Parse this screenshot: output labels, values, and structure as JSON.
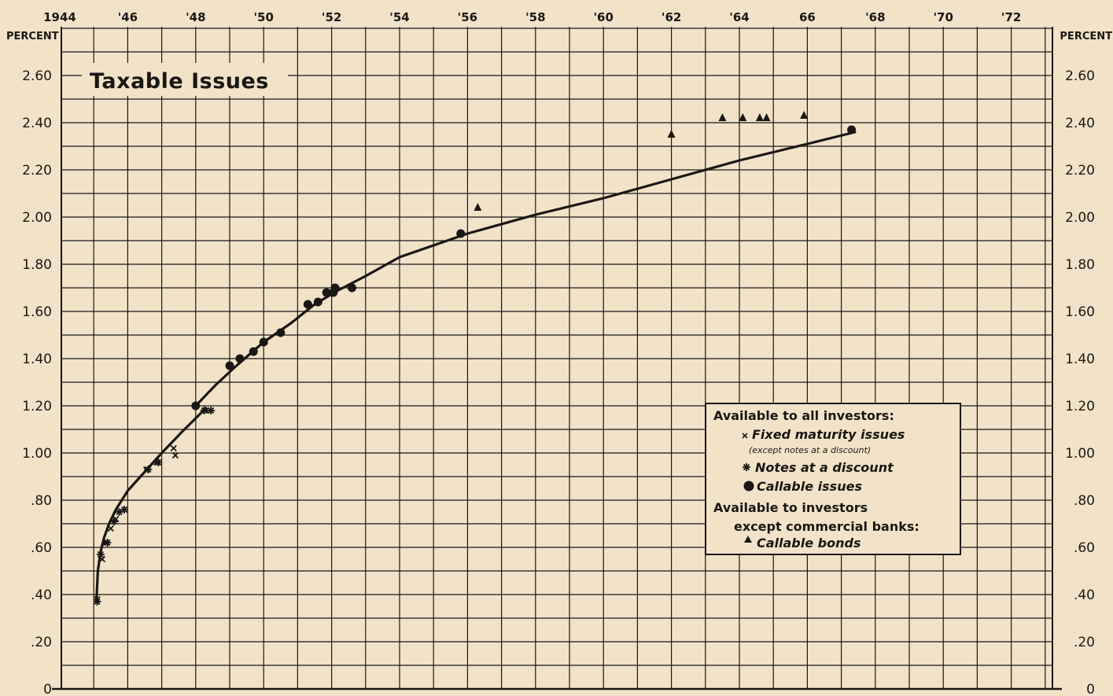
{
  "chart_data": {
    "type": "scatter",
    "title": "Taxable Issues",
    "ylabel_left": "PERCENT",
    "ylabel_right": "PERCENT",
    "xlim": [
      1944,
      1973
    ],
    "ylim": [
      0,
      2.7
    ],
    "grid": true,
    "x_ticks": [
      {
        "value": 1944,
        "label": "1944"
      },
      {
        "value": 1946,
        "label": "'46"
      },
      {
        "value": 1948,
        "label": "'48"
      },
      {
        "value": 1950,
        "label": "'50"
      },
      {
        "value": 1952,
        "label": "'52"
      },
      {
        "value": 1954,
        "label": "'54"
      },
      {
        "value": 1956,
        "label": "'56"
      },
      {
        "value": 1958,
        "label": "'58"
      },
      {
        "value": 1960,
        "label": "'60"
      },
      {
        "value": 1962,
        "label": "'62"
      },
      {
        "value": 1964,
        "label": "'64"
      },
      {
        "value": 1966,
        "label": "66"
      },
      {
        "value": 1968,
        "label": "'68"
      },
      {
        "value": 1970,
        "label": "'70"
      },
      {
        "value": 1972,
        "label": "'72"
      }
    ],
    "y_ticks_left": [
      {
        "value": 0,
        "label": "0"
      },
      {
        "value": 0.2,
        "label": ".20"
      },
      {
        "value": 0.4,
        "label": ".40"
      },
      {
        "value": 0.6,
        "label": ".60"
      },
      {
        "value": 0.8,
        "label": ".80"
      },
      {
        "value": 1.0,
        "label": "1.00"
      },
      {
        "value": 1.2,
        "label": "1.20"
      },
      {
        "value": 1.4,
        "label": "1.40"
      },
      {
        "value": 1.6,
        "label": "1.60"
      },
      {
        "value": 1.8,
        "label": "1.80"
      },
      {
        "value": 2.0,
        "label": "2.00"
      },
      {
        "value": 2.2,
        "label": "2.20"
      },
      {
        "value": 2.4,
        "label": "2.40"
      },
      {
        "value": 2.6,
        "label": "2.60"
      }
    ],
    "y_ticks_right": [
      {
        "value": 0,
        "label": "0"
      },
      {
        "value": 0.2,
        "label": ".20"
      },
      {
        "value": 0.4,
        "label": ".40"
      },
      {
        "value": 0.6,
        "label": ".60"
      },
      {
        "value": 0.8,
        "label": ".80"
      },
      {
        "value": 1.0,
        "label": "1.00"
      },
      {
        "value": 1.2,
        "label": "1.20"
      },
      {
        "value": 1.4,
        "label": "1.40"
      },
      {
        "value": 1.6,
        "label": "1.60"
      },
      {
        "value": 1.8,
        "label": "1.80"
      },
      {
        "value": 2.0,
        "label": "2.00"
      },
      {
        "value": 2.2,
        "label": "2.20"
      },
      {
        "value": 2.4,
        "label": "2.40"
      },
      {
        "value": 2.6,
        "label": "2.60"
      }
    ],
    "curves": [
      {
        "points": [
          [
            1945.08,
            0.38
          ],
          [
            1945.12,
            0.5
          ],
          [
            1945.2,
            0.58
          ],
          [
            1945.3,
            0.64
          ],
          [
            1945.45,
            0.7
          ],
          [
            1945.65,
            0.76
          ],
          [
            1946.0,
            0.84
          ],
          [
            1946.5,
            0.92
          ],
          [
            1947.0,
            1.0
          ],
          [
            1947.6,
            1.09
          ],
          [
            1948.3,
            1.19
          ]
        ]
      },
      {
        "points": [
          [
            1948.0,
            1.2
          ],
          [
            1948.6,
            1.29
          ],
          [
            1949.2,
            1.37
          ],
          [
            1950.0,
            1.47
          ],
          [
            1950.8,
            1.55
          ],
          [
            1951.5,
            1.63
          ],
          [
            1952.2,
            1.69
          ],
          [
            1953.0,
            1.75
          ],
          [
            1954.0,
            1.83
          ],
          [
            1955.0,
            1.88
          ],
          [
            1956.0,
            1.93
          ],
          [
            1958.0,
            2.01
          ],
          [
            1960.0,
            2.08
          ],
          [
            1962.0,
            2.16
          ],
          [
            1964.0,
            2.24
          ],
          [
            1966.0,
            2.31
          ],
          [
            1967.4,
            2.36
          ]
        ]
      }
    ],
    "series": [
      {
        "name": "Fixed maturity issues",
        "marker": "x",
        "points": [
          [
            1945.1,
            0.38
          ],
          [
            1945.25,
            0.55
          ],
          [
            1945.35,
            0.62
          ],
          [
            1945.5,
            0.68
          ],
          [
            1945.65,
            0.72
          ],
          [
            1946.55,
            0.93
          ],
          [
            1946.85,
            0.96
          ],
          [
            1947.35,
            1.02
          ],
          [
            1947.4,
            0.99
          ],
          [
            1948.3,
            1.18
          ]
        ]
      },
      {
        "name": "Notes at a discount",
        "marker": "asterisk",
        "points": [
          [
            1945.1,
            0.37
          ],
          [
            1945.2,
            0.57
          ],
          [
            1945.4,
            0.62
          ],
          [
            1945.6,
            0.71
          ],
          [
            1945.75,
            0.75
          ],
          [
            1945.9,
            0.76
          ],
          [
            1946.6,
            0.93
          ],
          [
            1946.9,
            0.96
          ],
          [
            1948.25,
            1.18
          ],
          [
            1948.45,
            1.18
          ]
        ]
      },
      {
        "name": "Callable issues",
        "marker": "dot",
        "points": [
          [
            1948.0,
            1.2
          ],
          [
            1949.0,
            1.37
          ],
          [
            1949.3,
            1.4
          ],
          [
            1949.7,
            1.43
          ],
          [
            1950.0,
            1.47
          ],
          [
            1950.5,
            1.51
          ],
          [
            1951.3,
            1.63
          ],
          [
            1951.6,
            1.64
          ],
          [
            1951.85,
            1.68
          ],
          [
            1952.05,
            1.68
          ],
          [
            1952.1,
            1.7
          ],
          [
            1952.6,
            1.7
          ],
          [
            1955.8,
            1.93
          ],
          [
            1967.3,
            2.37
          ]
        ]
      },
      {
        "name": "Callable bonds",
        "marker": "triangle",
        "points": [
          [
            1956.3,
            2.04
          ],
          [
            1962.0,
            2.35
          ],
          [
            1963.5,
            2.42
          ],
          [
            1964.1,
            2.42
          ],
          [
            1964.6,
            2.42
          ],
          [
            1964.8,
            2.42
          ],
          [
            1965.9,
            2.43
          ]
        ]
      }
    ],
    "legend": {
      "position": "right",
      "heading1": "Available to all investors:",
      "item1": "Fixed maturity issues",
      "item1_note": "(except notes at a discount)",
      "item2": "Notes at a discount",
      "item3": "Callable issues",
      "heading2a": "Available to investors",
      "heading2b": "except commercial banks:",
      "item4": "Callable bonds"
    }
  }
}
